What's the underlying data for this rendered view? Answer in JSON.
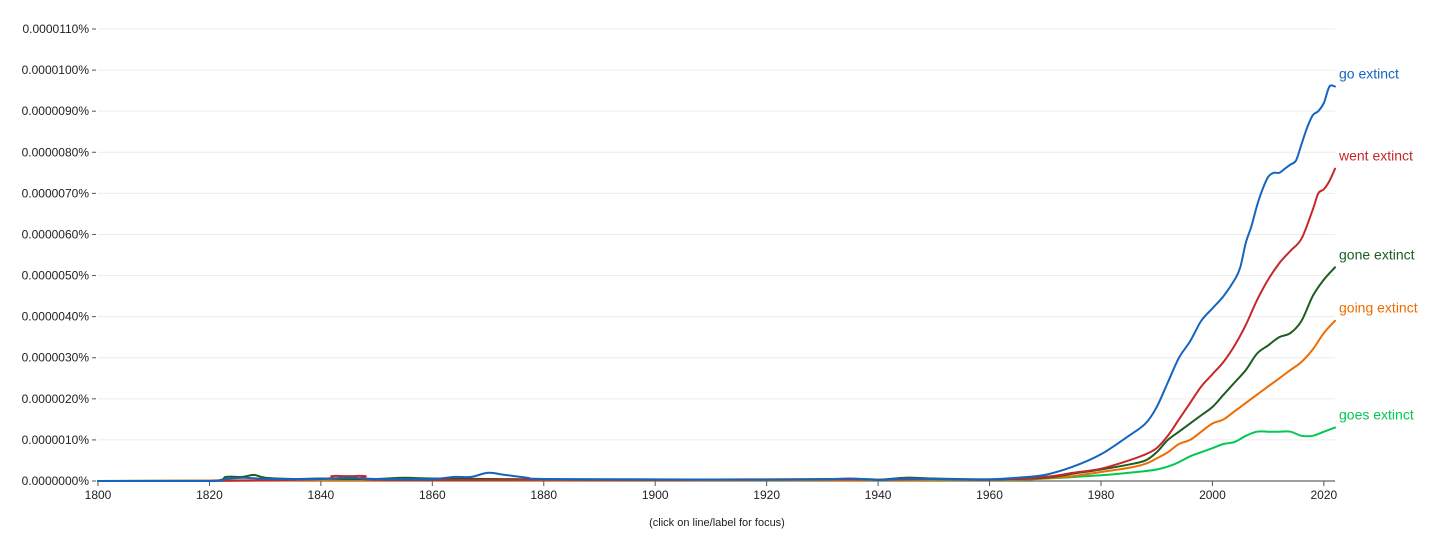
{
  "chart_data": {
    "type": "line",
    "footnote": "(click on line/label for focus)",
    "x_tick_labels": [
      "1800",
      "1820",
      "1840",
      "1860",
      "1880",
      "1900",
      "1920",
      "1940",
      "1960",
      "1980",
      "2000",
      "2020"
    ],
    "y_tick_labels": [
      "0.0000000%",
      "0.0000010%",
      "0.0000020%",
      "0.0000030%",
      "0.0000040%",
      "0.0000050%",
      "0.0000060%",
      "0.0000070%",
      "0.0000080%",
      "0.0000090%",
      "0.0000100%",
      "0.0000110%"
    ],
    "xlim": [
      1800,
      2022
    ],
    "ylim": [
      0,
      1.1e-05
    ],
    "y_unit": "%",
    "grid": true,
    "legend": "right-inline",
    "series": [
      {
        "name": "go extinct",
        "color": "#1565c0",
        "x": [
          1800,
          1820,
          1823,
          1826,
          1830,
          1835,
          1840,
          1845,
          1850,
          1860,
          1864,
          1867,
          1870,
          1873,
          1877,
          1880,
          1900,
          1920,
          1930,
          1935,
          1940,
          1945,
          1950,
          1960,
          1965,
          1970,
          1975,
          1980,
          1985,
          1988,
          1990,
          1992,
          1994,
          1996,
          1998,
          2000,
          2002,
          2004,
          2005,
          2006,
          2007,
          2008,
          2009,
          2010,
          2011,
          2012,
          2013,
          2014,
          2015,
          2016,
          2017,
          2018,
          2019,
          2020,
          2021,
          2022
        ],
        "values": [
          0,
          0,
          5e-08,
          8e-08,
          5e-08,
          5e-08,
          5e-08,
          8e-08,
          5e-08,
          5e-08,
          1e-07,
          1e-07,
          2e-07,
          1.5e-07,
          8e-08,
          5e-08,
          4e-08,
          3e-08,
          4e-08,
          6e-08,
          3e-08,
          6e-08,
          5e-08,
          4e-08,
          8e-08,
          1.5e-07,
          3.5e-07,
          6.5e-07,
          1.1e-06,
          1.4e-06,
          1.8e-06,
          2.4e-06,
          3e-06,
          3.4e-06,
          3.9e-06,
          4.2e-06,
          4.5e-06,
          4.9e-06,
          5.2e-06,
          5.8e-06,
          6.2e-06,
          6.7e-06,
          7.1e-06,
          7.4e-06,
          7.5e-06,
          7.5e-06,
          7.6e-06,
          7.7e-06,
          7.8e-06,
          8.2e-06,
          8.6e-06,
          8.9e-06,
          9e-06,
          9.2e-06,
          9.6e-06,
          9.6e-06
        ]
      },
      {
        "name": "went extinct",
        "color": "#c62828",
        "x": [
          1800,
          1820,
          1840,
          1842,
          1844,
          1846,
          1848,
          1850,
          1880,
          1900,
          1935,
          1940,
          1950,
          1960,
          1970,
          1975,
          1980,
          1985,
          1988,
          1990,
          1992,
          1994,
          1996,
          1998,
          2000,
          2002,
          2004,
          2006,
          2008,
          2010,
          2012,
          2014,
          2016,
          2018,
          2019,
          2020,
          2021,
          2022
        ],
        "values": [
          0,
          0,
          5e-08,
          1.2e-07,
          1.2e-07,
          1.2e-07,
          1.2e-07,
          3e-08,
          3e-08,
          3e-08,
          4e-08,
          3e-08,
          5e-08,
          3e-08,
          1e-07,
          2e-07,
          3e-07,
          5e-07,
          6.5e-07,
          8e-07,
          1.1e-06,
          1.5e-06,
          1.9e-06,
          2.3e-06,
          2.6e-06,
          2.9e-06,
          3.3e-06,
          3.8e-06,
          4.4e-06,
          4.9e-06,
          5.3e-06,
          5.6e-06,
          5.9e-06,
          6.6e-06,
          7e-06,
          7.1e-06,
          7.3e-06,
          7.6e-06
        ]
      },
      {
        "name": "gone extinct",
        "color": "#1b5e20",
        "x": [
          1800,
          1820,
          1823,
          1826,
          1828,
          1830,
          1835,
          1840,
          1845,
          1850,
          1855,
          1860,
          1880,
          1900,
          1935,
          1940,
          1945,
          1950,
          1960,
          1970,
          1975,
          1980,
          1985,
          1988,
          1990,
          1992,
          1994,
          1996,
          1998,
          2000,
          2002,
          2004,
          2006,
          2008,
          2010,
          2012,
          2014,
          2016,
          2018,
          2020,
          2022
        ],
        "values": [
          0,
          0,
          1e-07,
          1e-07,
          1.5e-07,
          8e-08,
          5e-08,
          6e-08,
          5e-08,
          5e-08,
          8e-08,
          6e-08,
          4e-08,
          3e-08,
          5e-08,
          3e-08,
          8e-08,
          6e-08,
          4e-08,
          8e-08,
          1.8e-07,
          2.8e-07,
          4e-07,
          5e-07,
          7e-07,
          1e-06,
          1.2e-06,
          1.4e-06,
          1.6e-06,
          1.8e-06,
          2.1e-06,
          2.4e-06,
          2.7e-06,
          3.1e-06,
          3.3e-06,
          3.5e-06,
          3.6e-06,
          3.9e-06,
          4.5e-06,
          4.9e-06,
          5.2e-06
        ]
      },
      {
        "name": "going extinct",
        "color": "#ef6c00",
        "x": [
          1800,
          1840,
          1880,
          1920,
          1960,
          1970,
          1975,
          1980,
          1985,
          1988,
          1990,
          1992,
          1994,
          1996,
          1998,
          2000,
          2002,
          2004,
          2006,
          2008,
          2010,
          2012,
          2014,
          2016,
          2018,
          2020,
          2022
        ],
        "values": [
          0,
          2e-08,
          2e-08,
          2e-08,
          3e-08,
          6e-08,
          1.2e-07,
          2.2e-07,
          3.2e-07,
          4.2e-07,
          5.5e-07,
          7e-07,
          9e-07,
          1e-06,
          1.2e-06,
          1.4e-06,
          1.5e-06,
          1.7e-06,
          1.9e-06,
          2.1e-06,
          2.3e-06,
          2.5e-06,
          2.7e-06,
          2.9e-06,
          3.2e-06,
          3.6e-06,
          3.9e-06
        ]
      },
      {
        "name": "goes extinct",
        "color": "#00c853",
        "x": [
          1800,
          1840,
          1880,
          1920,
          1960,
          1970,
          1980,
          1985,
          1990,
          1993,
          1996,
          1998,
          2000,
          2002,
          2004,
          2006,
          2008,
          2010,
          2012,
          2014,
          2016,
          2018,
          2020,
          2022
        ],
        "values": [
          0,
          2e-08,
          2e-08,
          2e-08,
          2e-08,
          6e-08,
          1.4e-07,
          2e-07,
          2.8e-07,
          4e-07,
          6e-07,
          7e-07,
          8e-07,
          9e-07,
          9.5e-07,
          1.1e-06,
          1.2e-06,
          1.2e-06,
          1.2e-06,
          1.2e-06,
          1.1e-06,
          1.1e-06,
          1.2e-06,
          1.3e-06
        ]
      }
    ]
  }
}
